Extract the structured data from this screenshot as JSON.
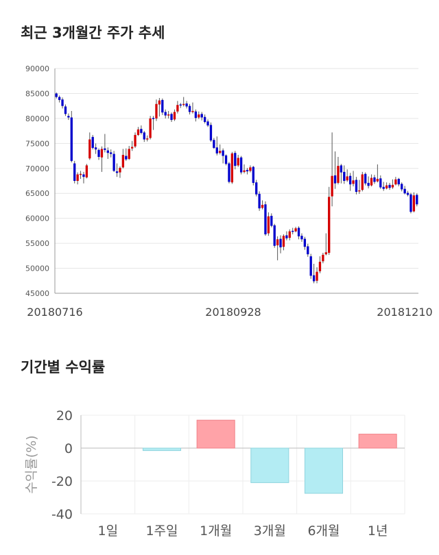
{
  "section1": {
    "title": "최근 3개월간 주가 추세"
  },
  "section2": {
    "title": "기간별 수익률"
  },
  "chart_data": [
    {
      "type": "candlestick",
      "title": "최근 3개월간 주가 추세",
      "ylim": [
        45000,
        90000
      ],
      "y_ticks": [
        90000,
        85000,
        80000,
        75000,
        70000,
        65000,
        60000,
        55000,
        50000,
        45000
      ],
      "x_tick_labels": [
        "20180716",
        "20180928",
        "20181210"
      ],
      "grid": true,
      "colors": {
        "up": "#d40000",
        "down": "#0000cc",
        "wick": "#555555"
      },
      "candles": [
        [
          85000,
          84300,
          85200,
          84000
        ],
        [
          84300,
          83700,
          84600,
          83200
        ],
        [
          83800,
          82500,
          84200,
          82000
        ],
        [
          82400,
          80900,
          82800,
          80500
        ],
        [
          80500,
          80200,
          81000,
          79700
        ],
        [
          80200,
          71500,
          81500,
          71200
        ],
        [
          71000,
          67500,
          71500,
          67000
        ],
        [
          67500,
          68800,
          69200,
          66800
        ],
        [
          68700,
          68900,
          69500,
          67900
        ],
        [
          68800,
          68300,
          69300,
          67000
        ],
        [
          68200,
          70600,
          70900,
          68000
        ],
        [
          72000,
          75800,
          77200,
          71700
        ],
        [
          76300,
          74100,
          76700,
          73800
        ],
        [
          74200,
          73800,
          75000,
          72900
        ],
        [
          73700,
          72300,
          74000,
          71700
        ],
        [
          72200,
          73900,
          74400,
          69300
        ],
        [
          74000,
          73700,
          76900,
          73200
        ],
        [
          73600,
          73100,
          74200,
          71900
        ],
        [
          73200,
          72900,
          73800,
          72200
        ],
        [
          72900,
          69500,
          73500,
          69300
        ],
        [
          69400,
          69100,
          71000,
          68300
        ],
        [
          69200,
          70100,
          70400,
          68100
        ],
        [
          70200,
          72700,
          73900,
          70000
        ],
        [
          72500,
          71800,
          74000,
          71500
        ],
        [
          71900,
          73900,
          74500,
          71700
        ],
        [
          74000,
          74300,
          75500,
          73500
        ],
        [
          74400,
          76700,
          77200,
          74100
        ],
        [
          76700,
          77800,
          78300,
          76500
        ],
        [
          77900,
          77100,
          78600,
          76800
        ],
        [
          77200,
          75800,
          77500,
          75300
        ],
        [
          75900,
          76000,
          76600,
          75400
        ],
        [
          76100,
          80000,
          80500,
          75800
        ],
        [
          80100,
          79900,
          80500,
          77700
        ],
        [
          80000,
          82900,
          83800,
          79500
        ],
        [
          82800,
          83600,
          84100,
          80400
        ],
        [
          83700,
          81200,
          84000,
          80700
        ],
        [
          81300,
          80600,
          81800,
          80000
        ],
        [
          80700,
          80800,
          81500,
          80000
        ],
        [
          80900,
          79700,
          81200,
          79300
        ],
        [
          79800,
          81300,
          81800,
          79500
        ],
        [
          81400,
          82700,
          83500,
          81000
        ],
        [
          82800,
          82700,
          83100,
          82100
        ],
        [
          82800,
          82900,
          84300,
          82400
        ],
        [
          83000,
          82400,
          83500,
          82000
        ],
        [
          82500,
          81300,
          82900,
          80800
        ],
        [
          81400,
          81500,
          83200,
          81000
        ],
        [
          81400,
          80100,
          81800,
          79400
        ],
        [
          80200,
          80800,
          81400,
          79900
        ],
        [
          80900,
          80200,
          81300,
          79600
        ],
        [
          80300,
          79300,
          80800,
          79000
        ],
        [
          79400,
          78600,
          79800,
          78300
        ],
        [
          78700,
          75600,
          79200,
          75300
        ],
        [
          75700,
          74100,
          76100,
          73900
        ],
        [
          74200,
          73000,
          76400,
          72600
        ],
        [
          73100,
          73500,
          74800,
          72800
        ],
        [
          73600,
          72500,
          74000,
          71000
        ],
        [
          72600,
          70900,
          72800,
          70600
        ],
        [
          71000,
          67300,
          71300,
          67000
        ],
        [
          67200,
          73000,
          73300,
          66900
        ],
        [
          73100,
          70500,
          73500,
          69800
        ],
        [
          70600,
          72100,
          72700,
          70300
        ],
        [
          72200,
          69200,
          72500,
          68800
        ],
        [
          69300,
          69600,
          70800,
          69000
        ],
        [
          69700,
          69400,
          70100,
          68800
        ],
        [
          69500,
          70200,
          70600,
          69200
        ],
        [
          70300,
          67100,
          70500,
          66600
        ],
        [
          67200,
          64800,
          67700,
          64400
        ],
        [
          64900,
          62000,
          65400,
          61500
        ],
        [
          62100,
          62700,
          63600,
          61800
        ],
        [
          62800,
          56800,
          63400,
          56500
        ],
        [
          57000,
          60400,
          61200,
          56500
        ],
        [
          60500,
          58500,
          61000,
          58200
        ],
        [
          58600,
          54500,
          58900,
          54100
        ],
        [
          54600,
          55800,
          56400,
          51600
        ],
        [
          55900,
          54200,
          56600,
          53000
        ],
        [
          54300,
          56500,
          56800,
          53600
        ],
        [
          56600,
          56000,
          57400,
          55600
        ],
        [
          56100,
          57400,
          57800,
          55600
        ],
        [
          57500,
          57300,
          58100,
          56800
        ],
        [
          57400,
          58000,
          58300,
          57200
        ],
        [
          58100,
          56400,
          58400,
          55800
        ],
        [
          56500,
          55800,
          57000,
          55300
        ],
        [
          55900,
          54300,
          56300,
          53700
        ],
        [
          54400,
          52800,
          54900,
          52300
        ],
        [
          52400,
          48500,
          52900,
          47900
        ],
        [
          48600,
          47400,
          50900,
          47000
        ],
        [
          47500,
          49300,
          50200,
          47000
        ],
        [
          49400,
          51300,
          52400,
          49000
        ],
        [
          51400,
          52700,
          53100,
          51000
        ],
        [
          52800,
          53200,
          57000,
          52600
        ],
        [
          53100,
          64300,
          66300,
          52700
        ],
        [
          64400,
          68500,
          77200,
          62400
        ],
        [
          68600,
          67000,
          73400,
          65900
        ],
        [
          67100,
          70500,
          72300,
          66800
        ],
        [
          70600,
          69200,
          70900,
          67000
        ],
        [
          69300,
          67500,
          70600,
          66900
        ],
        [
          67600,
          68400,
          69800,
          67300
        ],
        [
          68500,
          66800,
          69100,
          65500
        ],
        [
          66900,
          67600,
          69500,
          66400
        ],
        [
          67700,
          65300,
          68300,
          64800
        ],
        [
          65400,
          65600,
          67700,
          64900
        ],
        [
          65700,
          68800,
          69300,
          65400
        ],
        [
          68900,
          67000,
          69200,
          66600
        ],
        [
          67100,
          66500,
          68400,
          66000
        ],
        [
          66600,
          68100,
          68800,
          66400
        ],
        [
          68200,
          67300,
          68700,
          66900
        ],
        [
          67400,
          67900,
          70800,
          67200
        ],
        [
          68000,
          66200,
          68600,
          65900
        ],
        [
          66300,
          65900,
          67300,
          65500
        ],
        [
          66000,
          66600,
          67200,
          65800
        ],
        [
          66700,
          66100,
          67100,
          65700
        ],
        [
          66200,
          66700,
          67800,
          65900
        ],
        [
          66800,
          67800,
          68300,
          66600
        ],
        [
          67900,
          66800,
          68100,
          66400
        ],
        [
          66900,
          65800,
          67200,
          65400
        ],
        [
          65900,
          65000,
          66500,
          64800
        ],
        [
          65100,
          64700,
          65500,
          64400
        ],
        [
          64800,
          61300,
          65100,
          61000
        ],
        [
          61400,
          64600,
          65200,
          61200
        ],
        [
          64700,
          62800,
          65000,
          62400
        ]
      ]
    },
    {
      "type": "bar",
      "title": "기간별 수익률",
      "ylabel": "수익률(%)",
      "categories": [
        "1일",
        "1주일",
        "1개월",
        "3개월",
        "6개월",
        "1년"
      ],
      "values": [
        0,
        -1.5,
        17,
        -21,
        -27.5,
        8.5
      ],
      "ylim": [
        -40,
        20
      ],
      "y_ticks": [
        20,
        0,
        -20,
        -40
      ],
      "grid": true,
      "colors": {
        "positive_fill": "#ffa3a8",
        "positive_stroke": "#f08288",
        "negative_fill": "#b3ecf3",
        "negative_stroke": "#8fd4de"
      }
    }
  ]
}
